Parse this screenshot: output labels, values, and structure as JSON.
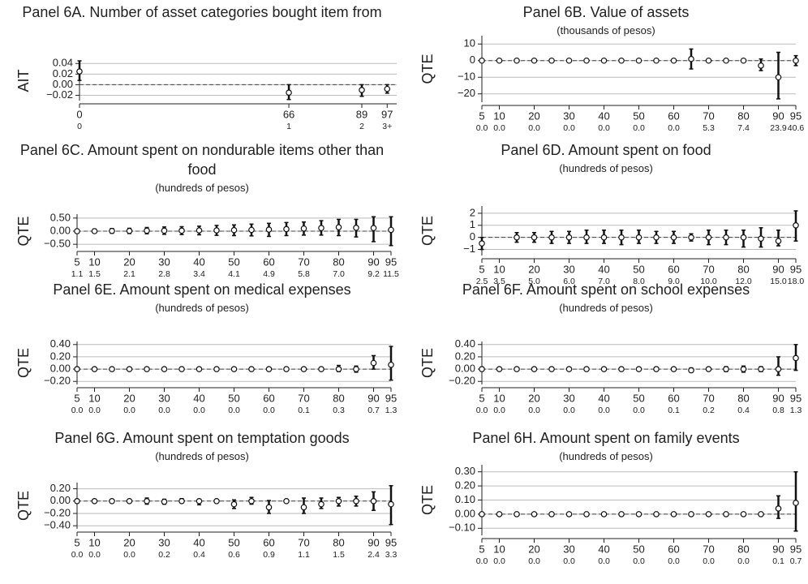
{
  "chart_data": [
    {
      "type": "errorbar",
      "title": "Panel 6A. Number of asset categories bought item from",
      "ylabel": "AIT",
      "x": [
        0,
        66,
        89,
        97
      ],
      "values": [
        0.025,
        -0.015,
        -0.01,
        -0.008
      ],
      "lower": [
        0.008,
        -0.028,
        -0.022,
        -0.016
      ],
      "upper": [
        0.045,
        0.0,
        0.0,
        0.0
      ],
      "xlim": [
        0,
        100
      ],
      "xticks": [
        0,
        66,
        89,
        97
      ],
      "x2ticks": [
        {
          "value": 0,
          "label": "0"
        },
        {
          "value": 66,
          "label": "1"
        },
        {
          "value": 89,
          "label": "2"
        },
        {
          "value": 97,
          "label": "3+"
        }
      ],
      "ylim": [
        -0.03,
        0.045
      ],
      "yticks": [
        {
          "value": -0.02,
          "label": "−0.02"
        },
        {
          "value": 0,
          "label": "0.00"
        },
        0.02,
        0.04
      ],
      "grid": true
    },
    {
      "type": "errorbar",
      "title": "Panel 6B. Value of assets",
      "subtitle": "(thousands of pesos)",
      "ylabel": "QTE",
      "x": [
        5,
        10,
        15,
        20,
        25,
        30,
        35,
        40,
        45,
        50,
        55,
        60,
        65,
        70,
        75,
        80,
        85,
        90,
        95
      ],
      "values": [
        0,
        0,
        0,
        0,
        0,
        0,
        0,
        0,
        0,
        0,
        0,
        0,
        1,
        0,
        0,
        0,
        -3,
        -10,
        0
      ],
      "lower": [
        -0.8,
        -0.8,
        -0.8,
        -0.8,
        -0.8,
        -0.8,
        -0.8,
        -0.8,
        -0.8,
        -0.8,
        -0.8,
        -0.8,
        -5,
        -0.8,
        -0.8,
        -0.8,
        -6,
        -23,
        -3
      ],
      "upper": [
        0.8,
        0.8,
        0.8,
        0.8,
        0.8,
        0.8,
        0.8,
        0.8,
        0.8,
        0.8,
        0.8,
        0.8,
        7,
        0.8,
        0.8,
        0.8,
        1,
        5,
        3
      ],
      "xlim": [
        5,
        95
      ],
      "xticks": [
        5,
        10,
        20,
        30,
        40,
        50,
        60,
        70,
        80,
        90,
        95
      ],
      "x2ticks": [
        {
          "value": 5,
          "label": "0.0"
        },
        {
          "value": 10,
          "label": "0.0"
        },
        {
          "value": 20,
          "label": "0.0"
        },
        {
          "value": 30,
          "label": "0.0"
        },
        {
          "value": 40,
          "label": "0.0"
        },
        {
          "value": 50,
          "label": "0.0"
        },
        {
          "value": 60,
          "label": "0.0"
        },
        {
          "value": 70,
          "label": "5.3"
        },
        {
          "value": 80,
          "label": "7.4"
        },
        {
          "value": 90,
          "label": "23.9"
        },
        {
          "value": 95,
          "label": "40.6"
        }
      ],
      "ylim": [
        -25,
        15
      ],
      "yticks": [
        {
          "value": -20,
          "label": "−20"
        },
        {
          "value": -10,
          "label": "−10"
        },
        0,
        10
      ],
      "grid": true
    },
    {
      "type": "errorbar",
      "title": "Panel 6C. Amount spent on nondurable items other than food",
      "subtitle": "(hundreds of pesos)",
      "ylabel": "QTE",
      "x": [
        5,
        10,
        15,
        20,
        25,
        30,
        35,
        40,
        45,
        50,
        55,
        60,
        65,
        70,
        75,
        80,
        85,
        90,
        95
      ],
      "values": [
        0,
        0,
        0.01,
        0.01,
        0.02,
        0.02,
        0.02,
        0.03,
        0.03,
        0.04,
        0.05,
        0.06,
        0.08,
        0.1,
        0.12,
        0.15,
        0.13,
        0.12,
        0.05
      ],
      "lower": [
        -0.08,
        -0.07,
        -0.08,
        -0.09,
        -0.1,
        -0.12,
        -0.13,
        -0.14,
        -0.16,
        -0.17,
        -0.18,
        -0.2,
        -0.17,
        -0.15,
        -0.15,
        -0.17,
        -0.22,
        -0.4,
        -0.55
      ],
      "upper": [
        0.07,
        0.08,
        0.1,
        0.11,
        0.14,
        0.16,
        0.17,
        0.19,
        0.22,
        0.24,
        0.27,
        0.3,
        0.33,
        0.35,
        0.4,
        0.45,
        0.45,
        0.55,
        0.55
      ],
      "xlim": [
        5,
        95
      ],
      "xticks": [
        5,
        10,
        20,
        30,
        40,
        50,
        60,
        70,
        80,
        90,
        95
      ],
      "x2ticks": [
        {
          "value": 5,
          "label": "1.1"
        },
        {
          "value": 10,
          "label": "1.5"
        },
        {
          "value": 20,
          "label": "2.1"
        },
        {
          "value": 30,
          "label": "2.8"
        },
        {
          "value": 40,
          "label": "3.4"
        },
        {
          "value": 50,
          "label": "4.1"
        },
        {
          "value": 60,
          "label": "4.9"
        },
        {
          "value": 70,
          "label": "5.8"
        },
        {
          "value": 80,
          "label": "7.0"
        },
        {
          "value": 90,
          "label": "9.2"
        },
        {
          "value": 95,
          "label": "11.5"
        }
      ],
      "ylim": [
        -0.65,
        0.65
      ],
      "yticks": [
        {
          "value": -0.5,
          "label": "−0.50"
        },
        {
          "value": 0,
          "label": "0.00"
        },
        {
          "value": 0.5,
          "label": "0.50"
        }
      ],
      "grid": true
    },
    {
      "type": "errorbar",
      "title": "Panel 6D. Amount spent on food",
      "subtitle": "(hundreds of pesos)",
      "ylabel": "QTE",
      "x": [
        5,
        10,
        15,
        20,
        25,
        30,
        35,
        40,
        45,
        50,
        55,
        60,
        65,
        70,
        75,
        80,
        85,
        90,
        95
      ],
      "values": [
        -0.5,
        null,
        0,
        0,
        0,
        0,
        0,
        0,
        0,
        0,
        0,
        0,
        0,
        0,
        0,
        0,
        -0.1,
        -0.3,
        1.0
      ],
      "lower": [
        -1,
        null,
        -0.4,
        -0.4,
        -0.5,
        -0.5,
        -0.5,
        -0.5,
        -0.6,
        -0.5,
        -0.5,
        -0.5,
        -0.3,
        -0.6,
        -0.6,
        -0.8,
        -0.8,
        -0.7,
        -0.3
      ],
      "upper": [
        0,
        null,
        0.4,
        0.4,
        0.5,
        0.5,
        0.6,
        0.6,
        0.6,
        0.6,
        0.5,
        0.5,
        0.3,
        0.6,
        0.6,
        0.6,
        0.8,
        0.6,
        2.2
      ],
      "xlim": [
        5,
        95
      ],
      "xticks": [
        5,
        10,
        20,
        30,
        40,
        50,
        60,
        70,
        80,
        90,
        95
      ],
      "x2ticks": [
        {
          "value": 5,
          "label": "2.5"
        },
        {
          "value": 10,
          "label": "3.5"
        },
        {
          "value": 20,
          "label": "5.0"
        },
        {
          "value": 30,
          "label": "6.0"
        },
        {
          "value": 40,
          "label": "7.0"
        },
        {
          "value": 50,
          "label": "8.0"
        },
        {
          "value": 60,
          "label": "9.0"
        },
        {
          "value": 70,
          "label": "10.0"
        },
        {
          "value": 80,
          "label": "12.0"
        },
        {
          "value": 90,
          "label": "15.0"
        },
        {
          "value": 95,
          "label": "18.0"
        }
      ],
      "ylim": [
        -1.5,
        2.6
      ],
      "yticks": [
        {
          "value": -1,
          "label": "−1"
        },
        0,
        1,
        2
      ],
      "grid": true
    },
    {
      "type": "errorbar",
      "title": "Panel 6E. Amount spent on medical expenses",
      "subtitle": "(hundreds of pesos)",
      "ylabel": "QTE",
      "x": [
        5,
        10,
        15,
        20,
        25,
        30,
        35,
        40,
        45,
        50,
        55,
        60,
        65,
        70,
        75,
        80,
        85,
        90,
        95
      ],
      "values": [
        0,
        0,
        0,
        0,
        0,
        0,
        0,
        0,
        0,
        0,
        0,
        0,
        0,
        0,
        0,
        0,
        0,
        0.1,
        0.07
      ],
      "lower": [
        -0.01,
        -0.01,
        -0.01,
        -0.01,
        -0.01,
        -0.01,
        -0.01,
        -0.01,
        -0.01,
        -0.01,
        -0.01,
        -0.03,
        -0.01,
        -0.01,
        -0.01,
        -0.04,
        -0.05,
        0.0,
        -0.18
      ],
      "upper": [
        0.01,
        0.01,
        0.01,
        0.01,
        0.01,
        0.01,
        0.01,
        0.01,
        0.01,
        0.01,
        0.01,
        0.03,
        0.01,
        0.01,
        0.01,
        0.06,
        0.05,
        0.22,
        0.37
      ],
      "xlim": [
        5,
        95
      ],
      "xticks": [
        5,
        10,
        20,
        30,
        40,
        50,
        60,
        70,
        80,
        90,
        95
      ],
      "x2ticks": [
        {
          "value": 5,
          "label": "0.0"
        },
        {
          "value": 10,
          "label": "0.0"
        },
        {
          "value": 20,
          "label": "0.0"
        },
        {
          "value": 30,
          "label": "0.0"
        },
        {
          "value": 40,
          "label": "0.0"
        },
        {
          "value": 50,
          "label": "0.0"
        },
        {
          "value": 60,
          "label": "0.0"
        },
        {
          "value": 70,
          "label": "0.1"
        },
        {
          "value": 80,
          "label": "0.3"
        },
        {
          "value": 90,
          "label": "0.7"
        },
        {
          "value": 95,
          "label": "1.3"
        }
      ],
      "ylim": [
        -0.25,
        0.45
      ],
      "yticks": [
        {
          "value": -0.2,
          "label": "−0.20"
        },
        {
          "value": 0,
          "label": "0.00"
        },
        {
          "value": 0.2,
          "label": "0.20"
        },
        {
          "value": 0.4,
          "label": "0.40"
        }
      ],
      "grid": true
    },
    {
      "type": "errorbar",
      "title": "Panel 6F. Amount spent on school expenses",
      "subtitle": "(hundreds of pesos)",
      "ylabel": "QTE",
      "x": [
        5,
        10,
        15,
        20,
        25,
        30,
        35,
        40,
        45,
        50,
        55,
        60,
        65,
        70,
        75,
        80,
        85,
        90,
        95
      ],
      "values": [
        0,
        0,
        0,
        0,
        0,
        0,
        0,
        0,
        0,
        0,
        0,
        0,
        -0.02,
        0,
        0,
        0,
        0,
        0.0,
        0.18
      ],
      "lower": [
        -0.01,
        -0.01,
        -0.01,
        -0.01,
        -0.01,
        -0.01,
        -0.01,
        -0.01,
        -0.01,
        -0.01,
        -0.01,
        -0.01,
        -0.05,
        -0.01,
        -0.04,
        -0.05,
        -0.04,
        -0.1,
        -0.02
      ],
      "upper": [
        0.01,
        0.01,
        0.01,
        0.01,
        0.01,
        0.01,
        0.01,
        0.01,
        0.01,
        0.01,
        0.01,
        0.01,
        0.02,
        0.01,
        0.04,
        0.05,
        0.04,
        0.2,
        0.4
      ],
      "xlim": [
        5,
        95
      ],
      "xticks": [
        5,
        10,
        20,
        30,
        40,
        50,
        60,
        70,
        80,
        90,
        95
      ],
      "x2ticks": [
        {
          "value": 5,
          "label": "0.0"
        },
        {
          "value": 10,
          "label": "0.0"
        },
        {
          "value": 20,
          "label": "0.0"
        },
        {
          "value": 30,
          "label": "0.0"
        },
        {
          "value": 40,
          "label": "0.0"
        },
        {
          "value": 50,
          "label": "0.0"
        },
        {
          "value": 60,
          "label": "0.1"
        },
        {
          "value": 70,
          "label": "0.2"
        },
        {
          "value": 80,
          "label": "0.4"
        },
        {
          "value": 90,
          "label": "0.8"
        },
        {
          "value": 95,
          "label": "1.3"
        }
      ],
      "ylim": [
        -0.25,
        0.45
      ],
      "yticks": [
        {
          "value": -0.2,
          "label": "−0.20"
        },
        {
          "value": 0,
          "label": "0.00"
        },
        {
          "value": 0.2,
          "label": "0.20"
        },
        {
          "value": 0.4,
          "label": "0.40"
        }
      ],
      "grid": true
    },
    {
      "type": "errorbar",
      "title": "Panel 6G. Amount spent on temptation goods",
      "subtitle": "(hundreds of pesos)",
      "ylabel": "QTE",
      "x": [
        5,
        10,
        15,
        20,
        25,
        30,
        35,
        40,
        45,
        50,
        55,
        60,
        65,
        70,
        75,
        80,
        85,
        90,
        95
      ],
      "values": [
        0,
        0,
        0,
        0,
        0,
        -0.01,
        0,
        0,
        0,
        -0.05,
        0,
        -0.1,
        0,
        -0.1,
        -0.05,
        0,
        0,
        0,
        -0.05
      ],
      "lower": [
        -0.01,
        -0.01,
        -0.01,
        -0.01,
        -0.05,
        -0.05,
        -0.03,
        -0.06,
        -0.01,
        -0.12,
        -0.05,
        -0.2,
        -0.01,
        -0.2,
        -0.12,
        -0.08,
        -0.08,
        -0.15,
        -0.38
      ],
      "upper": [
        0.01,
        0.01,
        0.01,
        0.01,
        0.05,
        0.03,
        0.04,
        0.03,
        0.01,
        0.02,
        0.06,
        0.01,
        0.01,
        0.05,
        0.05,
        0.06,
        0.08,
        0.15,
        0.25
      ],
      "xlim": [
        5,
        95
      ],
      "xticks": [
        5,
        10,
        20,
        30,
        40,
        50,
        60,
        70,
        80,
        90,
        95
      ],
      "x2ticks": [
        {
          "value": 5,
          "label": "0.0"
        },
        {
          "value": 10,
          "label": "0.0"
        },
        {
          "value": 20,
          "label": "0.0"
        },
        {
          "value": 30,
          "label": "0.2"
        },
        {
          "value": 40,
          "label": "0.4"
        },
        {
          "value": 50,
          "label": "0.6"
        },
        {
          "value": 60,
          "label": "0.9"
        },
        {
          "value": 70,
          "label": "1.1"
        },
        {
          "value": 80,
          "label": "1.5"
        },
        {
          "value": 90,
          "label": "2.4"
        },
        {
          "value": 95,
          "label": "3.3"
        }
      ],
      "ylim": [
        -0.45,
        0.3
      ],
      "yticks": [
        {
          "value": -0.4,
          "label": "−0.40"
        },
        {
          "value": -0.2,
          "label": "−0.20"
        },
        {
          "value": 0,
          "label": "0.00"
        },
        {
          "value": 0.2,
          "label": "0.20"
        }
      ],
      "grid": true
    },
    {
      "type": "errorbar",
      "title": "Panel 6H. Amount spent on family events",
      "subtitle": "(hundreds of pesos)",
      "ylabel": "QTE",
      "x": [
        5,
        10,
        15,
        20,
        25,
        30,
        35,
        40,
        45,
        50,
        55,
        60,
        65,
        70,
        75,
        80,
        85,
        90,
        95
      ],
      "values": [
        0,
        0,
        0,
        0,
        0,
        0,
        0,
        0,
        0,
        0,
        0,
        0,
        0,
        0,
        0,
        0,
        0,
        0.04,
        0.08
      ],
      "lower": [
        -0.005,
        -0.005,
        -0.005,
        -0.005,
        -0.005,
        -0.005,
        -0.005,
        -0.005,
        -0.005,
        -0.005,
        -0.005,
        -0.005,
        -0.005,
        -0.005,
        -0.005,
        -0.005,
        -0.005,
        -0.03,
        -0.12
      ],
      "upper": [
        0.005,
        0.005,
        0.005,
        0.005,
        0.005,
        0.005,
        0.005,
        0.005,
        0.005,
        0.005,
        0.005,
        0.005,
        0.005,
        0.005,
        0.005,
        0.005,
        0.005,
        0.13,
        0.3
      ],
      "xlim": [
        5,
        95
      ],
      "xticks": [
        5,
        10,
        20,
        30,
        40,
        50,
        60,
        70,
        80,
        90,
        95
      ],
      "x2ticks": [
        {
          "value": 5,
          "label": "0.0"
        },
        {
          "value": 10,
          "label": "0.0"
        },
        {
          "value": 20,
          "label": "0.0"
        },
        {
          "value": 30,
          "label": "0.0"
        },
        {
          "value": 40,
          "label": "0.0"
        },
        {
          "value": 50,
          "label": "0.0"
        },
        {
          "value": 60,
          "label": "0.0"
        },
        {
          "value": 70,
          "label": "0.0"
        },
        {
          "value": 80,
          "label": "0.0"
        },
        {
          "value": 90,
          "label": "0.1"
        },
        {
          "value": 95,
          "label": "0.7"
        }
      ],
      "ylim": [
        -0.15,
        0.35
      ],
      "yticks": [
        {
          "value": -0.1,
          "label": "−0.10"
        },
        {
          "value": 0,
          "label": "0.00"
        },
        {
          "value": 0.1,
          "label": "0.10"
        },
        {
          "value": 0.2,
          "label": "0.20"
        },
        {
          "value": 0.3,
          "label": "0.30"
        }
      ],
      "grid": true
    }
  ]
}
